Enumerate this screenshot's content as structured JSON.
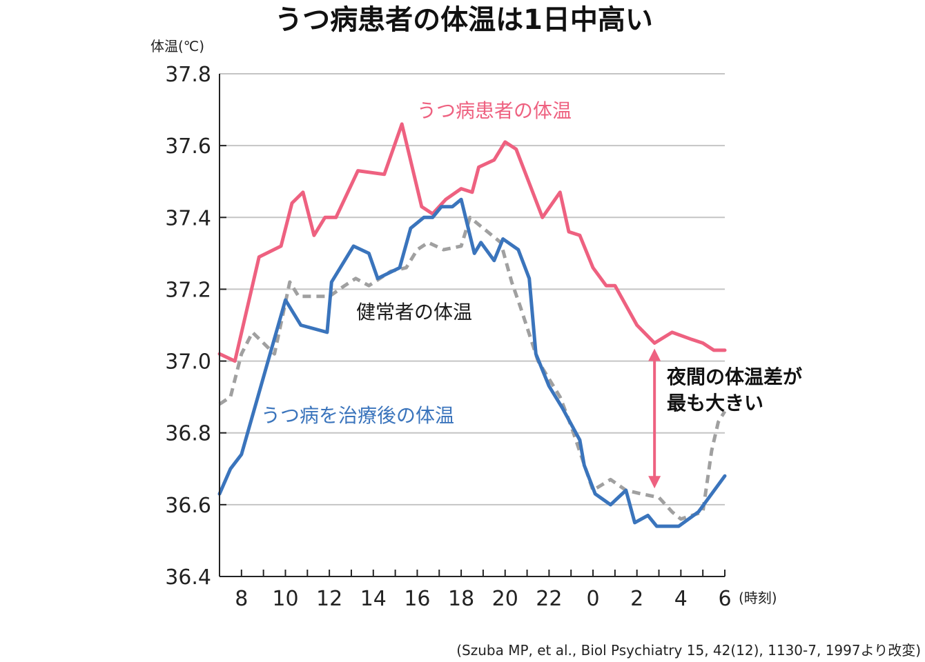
{
  "chart_data": {
    "type": "line",
    "title": "うつ病患者の体温は1日中高い",
    "ylabel": "体温(℃)",
    "xlabel": "(時刻)",
    "ylim": [
      36.4,
      37.8
    ],
    "yticks": [
      "37.8",
      "37.6",
      "37.4",
      "37.2",
      "37.0",
      "36.8",
      "36.6",
      "36.4"
    ],
    "x_range": [
      7,
      30
    ],
    "xtick_labels": [
      {
        "hour": 8,
        "label": "8"
      },
      {
        "hour": 10,
        "label": "10"
      },
      {
        "hour": 12,
        "label": "12"
      },
      {
        "hour": 14,
        "label": "14"
      },
      {
        "hour": 16,
        "label": "16"
      },
      {
        "hour": 18,
        "label": "18"
      },
      {
        "hour": 20,
        "label": "20"
      },
      {
        "hour": 22,
        "label": "22"
      },
      {
        "hour": 24,
        "label": "0"
      },
      {
        "hour": 26,
        "label": "2"
      },
      {
        "hour": 28,
        "label": "4"
      },
      {
        "hour": 30,
        "label": "6"
      }
    ],
    "grid": true,
    "series": [
      {
        "name": "うつ病患者の体温",
        "color": "#ee6180",
        "style": "solid",
        "points": [
          [
            7,
            37.02
          ],
          [
            7.7,
            37.0
          ],
          [
            8.8,
            37.29
          ],
          [
            9.8,
            37.32
          ],
          [
            10.3,
            37.44
          ],
          [
            10.8,
            37.47
          ],
          [
            11.3,
            37.35
          ],
          [
            11.8,
            37.4
          ],
          [
            12.3,
            37.4
          ],
          [
            13.3,
            37.53
          ],
          [
            14.5,
            37.52
          ],
          [
            15.3,
            37.66
          ],
          [
            16.2,
            37.43
          ],
          [
            16.7,
            37.41
          ],
          [
            17.3,
            37.45
          ],
          [
            18.0,
            37.48
          ],
          [
            18.5,
            37.47
          ],
          [
            18.8,
            37.54
          ],
          [
            19.5,
            37.56
          ],
          [
            20.0,
            37.61
          ],
          [
            20.5,
            37.59
          ],
          [
            21.7,
            37.4
          ],
          [
            22.5,
            37.47
          ],
          [
            22.9,
            37.36
          ],
          [
            23.4,
            37.35
          ],
          [
            24.0,
            37.26
          ],
          [
            24.6,
            37.21
          ],
          [
            25.0,
            37.21
          ],
          [
            26.0,
            37.1
          ],
          [
            26.8,
            37.05
          ],
          [
            27.6,
            37.08
          ],
          [
            28.5,
            37.06
          ],
          [
            29.0,
            37.05
          ],
          [
            29.5,
            37.03
          ],
          [
            30.0,
            37.03
          ]
        ]
      },
      {
        "name": "健常者の体温",
        "color": "#a0a0a0",
        "style": "dashed",
        "points": [
          [
            7,
            36.88
          ],
          [
            7.5,
            36.9
          ],
          [
            8.0,
            37.02
          ],
          [
            8.5,
            37.08
          ],
          [
            9.0,
            37.05
          ],
          [
            9.5,
            37.02
          ],
          [
            10.2,
            37.22
          ],
          [
            10.6,
            37.18
          ],
          [
            11.2,
            37.18
          ],
          [
            12.0,
            37.18
          ],
          [
            12.7,
            37.21
          ],
          [
            13.2,
            37.23
          ],
          [
            13.8,
            37.21
          ],
          [
            14.3,
            37.23
          ],
          [
            14.8,
            37.25
          ],
          [
            15.5,
            37.26
          ],
          [
            16.0,
            37.31
          ],
          [
            16.5,
            37.33
          ],
          [
            17.2,
            37.31
          ],
          [
            18.0,
            37.32
          ],
          [
            18.4,
            37.4
          ],
          [
            19.0,
            37.37
          ],
          [
            19.8,
            37.33
          ],
          [
            20.3,
            37.22
          ],
          [
            20.7,
            37.15
          ],
          [
            21.5,
            37.0
          ],
          [
            22.5,
            36.9
          ],
          [
            23.0,
            36.82
          ],
          [
            23.5,
            36.73
          ],
          [
            24.0,
            36.64
          ],
          [
            24.8,
            36.67
          ],
          [
            25.5,
            36.64
          ],
          [
            26.2,
            36.63
          ],
          [
            27.0,
            36.62
          ],
          [
            27.6,
            36.58
          ],
          [
            28.0,
            36.56
          ],
          [
            29.0,
            36.58
          ],
          [
            29.4,
            36.75
          ],
          [
            29.7,
            36.83
          ],
          [
            30.0,
            36.86
          ]
        ]
      },
      {
        "name": "うつ病を治療後の体温",
        "color": "#3a74bc",
        "style": "solid",
        "points": [
          [
            7,
            36.63
          ],
          [
            7.5,
            36.7
          ],
          [
            8.0,
            36.74
          ],
          [
            10.0,
            37.17
          ],
          [
            10.7,
            37.1
          ],
          [
            11.9,
            37.08
          ],
          [
            12.1,
            37.22
          ],
          [
            13.1,
            37.32
          ],
          [
            13.8,
            37.3
          ],
          [
            14.2,
            37.23
          ],
          [
            15.2,
            37.26
          ],
          [
            15.7,
            37.37
          ],
          [
            16.3,
            37.4
          ],
          [
            16.7,
            37.4
          ],
          [
            17.1,
            37.43
          ],
          [
            17.6,
            37.43
          ],
          [
            18.0,
            37.45
          ],
          [
            18.6,
            37.3
          ],
          [
            18.9,
            37.33
          ],
          [
            19.5,
            37.28
          ],
          [
            19.9,
            37.34
          ],
          [
            20.6,
            37.31
          ],
          [
            21.1,
            37.23
          ],
          [
            21.4,
            37.02
          ],
          [
            22.0,
            36.93
          ],
          [
            22.6,
            36.87
          ],
          [
            23.4,
            36.78
          ],
          [
            23.6,
            36.71
          ],
          [
            24.1,
            36.63
          ],
          [
            24.8,
            36.6
          ],
          [
            25.5,
            36.64
          ],
          [
            25.9,
            36.55
          ],
          [
            26.5,
            36.57
          ],
          [
            26.9,
            36.54
          ],
          [
            27.9,
            36.54
          ],
          [
            28.8,
            36.58
          ],
          [
            30.0,
            36.68
          ]
        ]
      }
    ],
    "series_labels": {
      "depressed": "うつ病患者の体温",
      "healthy": "健常者の体温",
      "treated": "うつ病を治療後の体温"
    },
    "annotation": {
      "line1": "夜間の体温差が",
      "line2": "最も大きい",
      "arrow_hour": 26.8,
      "arrow_from": 37.05,
      "arrow_to": 36.63,
      "color": "#ee6180"
    },
    "source": "(Szuba MP, et al., Biol Psychiatry 15, 42(12), 1130-7, 1997より改変)"
  }
}
